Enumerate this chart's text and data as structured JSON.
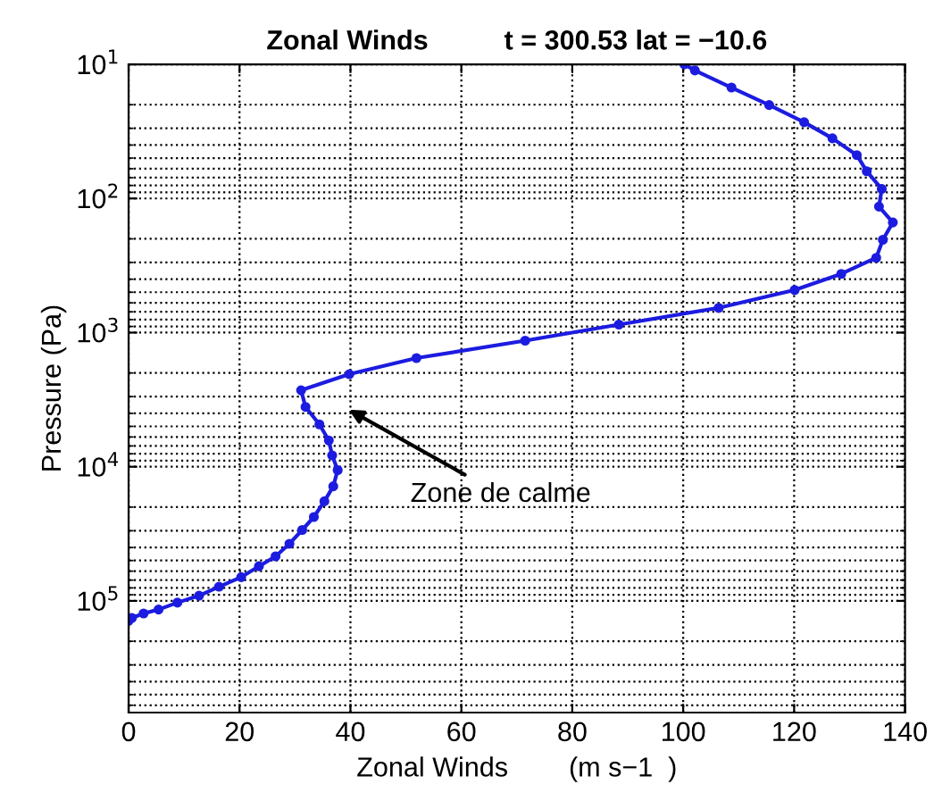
{
  "chart_data": {
    "type": "line",
    "title": "Zonal Winds          t = 300.53 lat = −10.6",
    "xlabel": "Zonal Winds        (m s−1  )",
    "ylabel": "Pressure (Pa)",
    "series": [
      {
        "color": "#1c1ce0",
        "x": [
          100.2,
          102.1,
          108.7,
          115.5,
          121.8,
          126.9,
          131.3,
          133.1,
          135.8,
          135.3,
          137.8,
          136.0,
          134.8,
          128.5,
          120.1,
          106.4,
          88.4,
          71.5,
          51.9,
          39.8,
          31.1,
          31.9,
          34.4,
          36.1,
          36.7,
          37.7,
          36.9,
          35.3,
          33.4,
          31.3,
          29.0,
          26.5,
          23.5,
          20.3,
          16.3,
          12.7,
          8.8,
          5.4,
          2.7,
          0.6,
          0
        ],
        "values": [
          10,
          11.1,
          14.9,
          20.1,
          27,
          35.6,
          47.5,
          62.7,
          85,
          115,
          151,
          203,
          277,
          365,
          481,
          654,
          871,
          1148,
          1549,
          2042,
          2692,
          3580,
          4830,
          6370,
          8230,
          10600,
          14000,
          18100,
          23700,
          29600,
          37500,
          46500,
          55200,
          66500,
          78400,
          91400,
          103000,
          116000,
          124000,
          134000,
          141000
        ]
      }
    ],
    "annotations": [
      "Zone de calme"
    ],
    "log": "y",
    "xlim": [
      0,
      140
    ],
    "xticks": [
      0,
      20,
      40,
      60,
      80,
      100,
      120,
      140
    ],
    "ylim": [
      680000,
      10
    ],
    "yticks": [
      {
        "value": 10,
        "label": "10$^{1}$"
      },
      {
        "value": 100,
        "label": "10$^{2}$"
      },
      {
        "value": 1000,
        "label": "10$^{3}$"
      },
      {
        "value": 10000,
        "label": "10$^{4}$"
      },
      {
        "value": 100000,
        "label": "10$^{5}$"
      }
    ],
    "grid": true,
    "marker": "circle",
    "line_style": "solid",
    "legend": false
  }
}
